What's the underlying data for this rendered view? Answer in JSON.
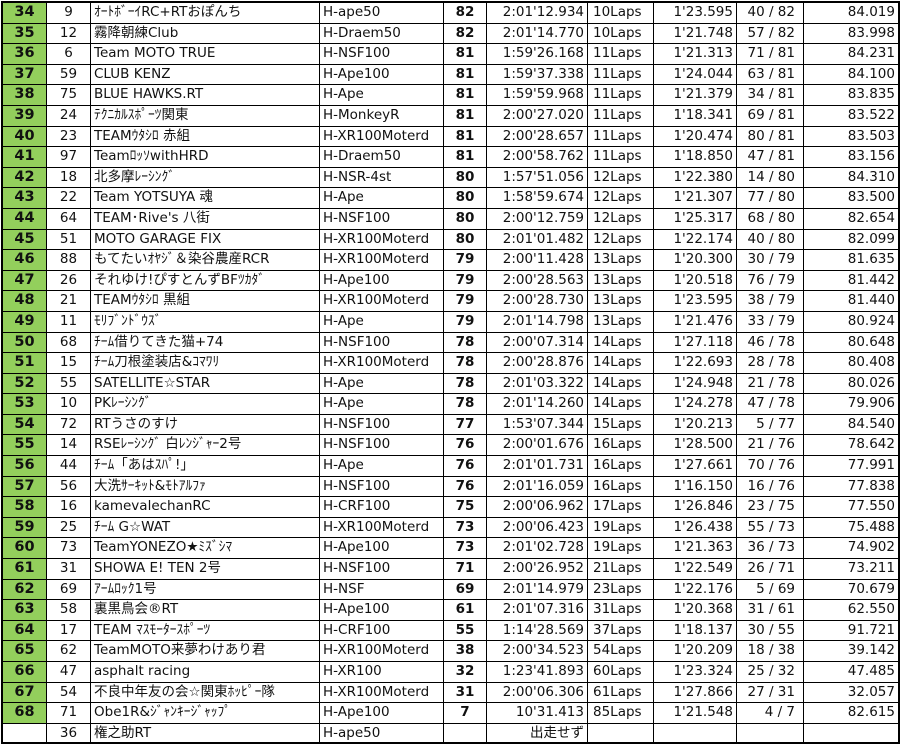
{
  "colors": {
    "position_bg": "#93cf5c",
    "border": "#000000"
  },
  "rows": [
    {
      "pos": "34",
      "num": "9",
      "team": "ｵｰﾄﾎﾞｰｲRC+RTおぽんち",
      "class": "H-ape50",
      "laps": "82",
      "time": "2:01'12.934",
      "gap": "10Laps",
      "best": "1'23.595",
      "best_lap": "40 / 82",
      "speed": "84.019"
    },
    {
      "pos": "35",
      "num": "12",
      "team": "霧降朝練Club",
      "class": "H-Draem50",
      "laps": "82",
      "time": "2:01'14.770",
      "gap": "10Laps",
      "best": "1'21.748",
      "best_lap": "57 / 82",
      "speed": "83.998"
    },
    {
      "pos": "36",
      "num": "6",
      "team": "Team MOTO TRUE",
      "class": "H-NSF100",
      "laps": "81",
      "time": "1:59'26.168",
      "gap": "11Laps",
      "best": "1'21.313",
      "best_lap": "71 / 81",
      "speed": "84.231"
    },
    {
      "pos": "37",
      "num": "59",
      "team": "CLUB KENZ",
      "class": "H-Ape100",
      "laps": "81",
      "time": "1:59'37.338",
      "gap": "11Laps",
      "best": "1'24.044",
      "best_lap": "63 / 81",
      "speed": "84.100"
    },
    {
      "pos": "38",
      "num": "75",
      "team": "BLUE HAWKS.RT",
      "class": "H-Ape",
      "laps": "81",
      "time": "1:59'59.968",
      "gap": "11Laps",
      "best": "1'21.379",
      "best_lap": "34 / 81",
      "speed": "83.835"
    },
    {
      "pos": "39",
      "num": "24",
      "team": "ﾃｸﾆｶﾙｽﾎﾟｰﾂ関東",
      "class": "H-MonkeyR",
      "laps": "81",
      "time": "2:00'27.020",
      "gap": "11Laps",
      "best": "1'18.341",
      "best_lap": "69 / 81",
      "speed": "83.522"
    },
    {
      "pos": "40",
      "num": "23",
      "team": "TEAMｳﾀｼﾛ 赤組",
      "class": "H-XR100Moterd",
      "laps": "81",
      "time": "2:00'28.657",
      "gap": "11Laps",
      "best": "1'20.474",
      "best_lap": "80 / 81",
      "speed": "83.503"
    },
    {
      "pos": "41",
      "num": "97",
      "team": "TeamﾛｯｿwithHRD",
      "class": "H-Draem50",
      "laps": "81",
      "time": "2:00'58.762",
      "gap": "11Laps",
      "best": "1'18.850",
      "best_lap": "47 / 81",
      "speed": "83.156"
    },
    {
      "pos": "42",
      "num": "18",
      "team": "北多摩ﾚｰｼﾝｸﾞ",
      "class": "H-NSR-4st",
      "laps": "80",
      "time": "1:57'51.056",
      "gap": "12Laps",
      "best": "1'22.380",
      "best_lap": "14 / 80",
      "speed": "84.310"
    },
    {
      "pos": "43",
      "num": "22",
      "team": "Team YOTSUYA 魂",
      "class": "H-Ape",
      "laps": "80",
      "time": "1:58'59.674",
      "gap": "12Laps",
      "best": "1'21.307",
      "best_lap": "77 / 80",
      "speed": "83.500"
    },
    {
      "pos": "44",
      "num": "64",
      "team": "TEAM･Rive's 八街",
      "class": "H-NSF100",
      "laps": "80",
      "time": "2:00'12.759",
      "gap": "12Laps",
      "best": "1'25.317",
      "best_lap": "68 / 80",
      "speed": "82.654"
    },
    {
      "pos": "45",
      "num": "51",
      "team": "MOTO GARAGE FIX",
      "class": "H-XR100Moterd",
      "laps": "80",
      "time": "2:01'01.482",
      "gap": "12Laps",
      "best": "1'22.174",
      "best_lap": "40 / 80",
      "speed": "82.099"
    },
    {
      "pos": "46",
      "num": "88",
      "team": "もてたいｵﾔｼﾞ＆染谷農産RCR",
      "class": "H-XR100Moterd",
      "laps": "79",
      "time": "2:00'11.428",
      "gap": "13Laps",
      "best": "1'20.300",
      "best_lap": "30 / 79",
      "speed": "81.635"
    },
    {
      "pos": "47",
      "num": "26",
      "team": "それゆけ!ぴすとんずBFﾂｶﾀﾞ",
      "class": "H-Ape100",
      "laps": "79",
      "time": "2:00'28.563",
      "gap": "13Laps",
      "best": "1'20.518",
      "best_lap": "76 / 79",
      "speed": "81.442"
    },
    {
      "pos": "48",
      "num": "21",
      "team": "TEAMｳﾀｼﾛ 黒組",
      "class": "H-XR100Moterd",
      "laps": "79",
      "time": "2:00'28.730",
      "gap": "13Laps",
      "best": "1'23.595",
      "best_lap": "38 / 79",
      "speed": "81.440"
    },
    {
      "pos": "49",
      "num": "11",
      "team": "ﾓﾘﾌﾞﾝﾄﾞｳｽﾞ",
      "class": "H-Ape",
      "laps": "79",
      "time": "2:01'14.798",
      "gap": "13Laps",
      "best": "1'21.476",
      "best_lap": "33 / 79",
      "speed": "80.924"
    },
    {
      "pos": "50",
      "num": "68",
      "team": "ﾁｰﾑ借りてきた猫+74",
      "class": "H-NSF100",
      "laps": "78",
      "time": "2:00'07.314",
      "gap": "14Laps",
      "best": "1'27.118",
      "best_lap": "46 / 78",
      "speed": "80.648"
    },
    {
      "pos": "51",
      "num": "15",
      "team": "ﾁｰﾑ刀根塗装店&ｺﾏﾜﾘ",
      "class": "H-XR100Moterd",
      "laps": "78",
      "time": "2:00'28.876",
      "gap": "14Laps",
      "best": "1'22.693",
      "best_lap": "28 / 78",
      "speed": "80.408"
    },
    {
      "pos": "52",
      "num": "55",
      "team": "SATELLITE☆STAR",
      "class": "H-Ape",
      "laps": "78",
      "time": "2:01'03.322",
      "gap": "14Laps",
      "best": "1'24.948",
      "best_lap": "21 / 78",
      "speed": "80.026"
    },
    {
      "pos": "53",
      "num": "10",
      "team": "PKﾚｰｼﾝｸﾞ",
      "class": "H-Ape",
      "laps": "78",
      "time": "2:01'14.260",
      "gap": "14Laps",
      "best": "1'24.278",
      "best_lap": "47 / 78",
      "speed": "79.906"
    },
    {
      "pos": "54",
      "num": "72",
      "team": "RTうさのすけ",
      "class": "H-NSF100",
      "laps": "77",
      "time": "1:53'07.344",
      "gap": "15Laps",
      "best": "1'20.213",
      "best_lap": "5 / 77",
      "speed": "84.540"
    },
    {
      "pos": "55",
      "num": "14",
      "team": "RSEﾚｰｼﾝｸﾞ 白ﾚﾝｼﾞｬｰ2号",
      "class": "H-NSF100",
      "laps": "76",
      "time": "2:00'01.676",
      "gap": "16Laps",
      "best": "1'28.500",
      "best_lap": "21 / 76",
      "speed": "78.642"
    },
    {
      "pos": "56",
      "num": "44",
      "team": "ﾁｰﾑ「あはｽﾊﾟ!」",
      "class": "H-Ape",
      "laps": "76",
      "time": "2:01'01.731",
      "gap": "16Laps",
      "best": "1'27.661",
      "best_lap": "70 / 76",
      "speed": "77.991"
    },
    {
      "pos": "57",
      "num": "56",
      "team": "大洗ｻｰｷｯﾄ&ﾓﾄｱﾙﾌｧ",
      "class": "H-NSF100",
      "laps": "76",
      "time": "2:01'16.059",
      "gap": "16Laps",
      "best": "1'16.150",
      "best_lap": "16 / 76",
      "speed": "77.838"
    },
    {
      "pos": "58",
      "num": "16",
      "team": "kamevalechanRC",
      "class": "H-CRF100",
      "laps": "75",
      "time": "2:00'06.962",
      "gap": "17Laps",
      "best": "1'26.846",
      "best_lap": "23 / 75",
      "speed": "77.550"
    },
    {
      "pos": "59",
      "num": "25",
      "team": "ﾁｰﾑ G☆WAT",
      "class": "H-XR100Moterd",
      "laps": "73",
      "time": "2:00'06.423",
      "gap": "19Laps",
      "best": "1'26.438",
      "best_lap": "55 / 73",
      "speed": "75.488"
    },
    {
      "pos": "60",
      "num": "73",
      "team": "TeamYONEZO★ﾐｽﾞｼﾏ",
      "class": "H-Ape100",
      "laps": "73",
      "time": "2:01'02.728",
      "gap": "19Laps",
      "best": "1'21.363",
      "best_lap": "36 / 73",
      "speed": "74.902"
    },
    {
      "pos": "61",
      "num": "31",
      "team": "SHOWA E! TEN 2号",
      "class": "H-NSF100",
      "laps": "71",
      "time": "2:00'26.952",
      "gap": "21Laps",
      "best": "1'22.549",
      "best_lap": "26 / 71",
      "speed": "73.211"
    },
    {
      "pos": "62",
      "num": "69",
      "team": "ｱｰﾑﾛｯｸ1号",
      "class": "H-NSF",
      "laps": "69",
      "time": "2:01'14.979",
      "gap": "23Laps",
      "best": "1'22.176",
      "best_lap": "5 / 69",
      "speed": "70.679"
    },
    {
      "pos": "63",
      "num": "58",
      "team": "裏黒鳥会®RT",
      "class": "H-Ape100",
      "laps": "61",
      "time": "2:01'07.316",
      "gap": "31Laps",
      "best": "1'20.368",
      "best_lap": "31 / 61",
      "speed": "62.550"
    },
    {
      "pos": "64",
      "num": "17",
      "team": "TEAM ﾏｽﾓｰﾀｰｽﾎﾟｰﾂ",
      "class": "H-CRF100",
      "laps": "55",
      "time": "1:14'28.569",
      "gap": "37Laps",
      "best": "1'18.137",
      "best_lap": "30 / 55",
      "speed": "91.721"
    },
    {
      "pos": "65",
      "num": "62",
      "team": "TeamMOTO来夢わけあり君",
      "class": "H-XR100Moterd",
      "laps": "38",
      "time": "2:00'34.523",
      "gap": "54Laps",
      "best": "1'20.209",
      "best_lap": "18 / 38",
      "speed": "39.142"
    },
    {
      "pos": "66",
      "num": "47",
      "team": "asphalt racing",
      "class": "H-XR100",
      "laps": "32",
      "time": "1:23'41.893",
      "gap": "60Laps",
      "best": "1'23.324",
      "best_lap": "25 / 32",
      "speed": "47.485"
    },
    {
      "pos": "67",
      "num": "54",
      "team": "不良中年友の会☆関東ﾎｯﾋﾟｰ隊",
      "class": "H-XR100Moterd",
      "laps": "31",
      "time": "2:00'06.306",
      "gap": "61Laps",
      "best": "1'27.866",
      "best_lap": "27 / 31",
      "speed": "32.057"
    },
    {
      "pos": "68",
      "num": "71",
      "team": "Obe1R&ｼﾞｬﾝｷｰｼﾞｬｯﾌﾟ",
      "class": "H-Ape100",
      "laps": "7",
      "time": "10'31.413",
      "gap": "85Laps",
      "best": "1'21.548",
      "best_lap": "4 / 7",
      "speed": "82.615"
    },
    {
      "pos": "",
      "num": "36",
      "team": "権之助RT",
      "class": "H-ape50",
      "laps": "",
      "time": "出走せず",
      "gap": "",
      "best": "",
      "best_lap": "",
      "speed": ""
    }
  ]
}
